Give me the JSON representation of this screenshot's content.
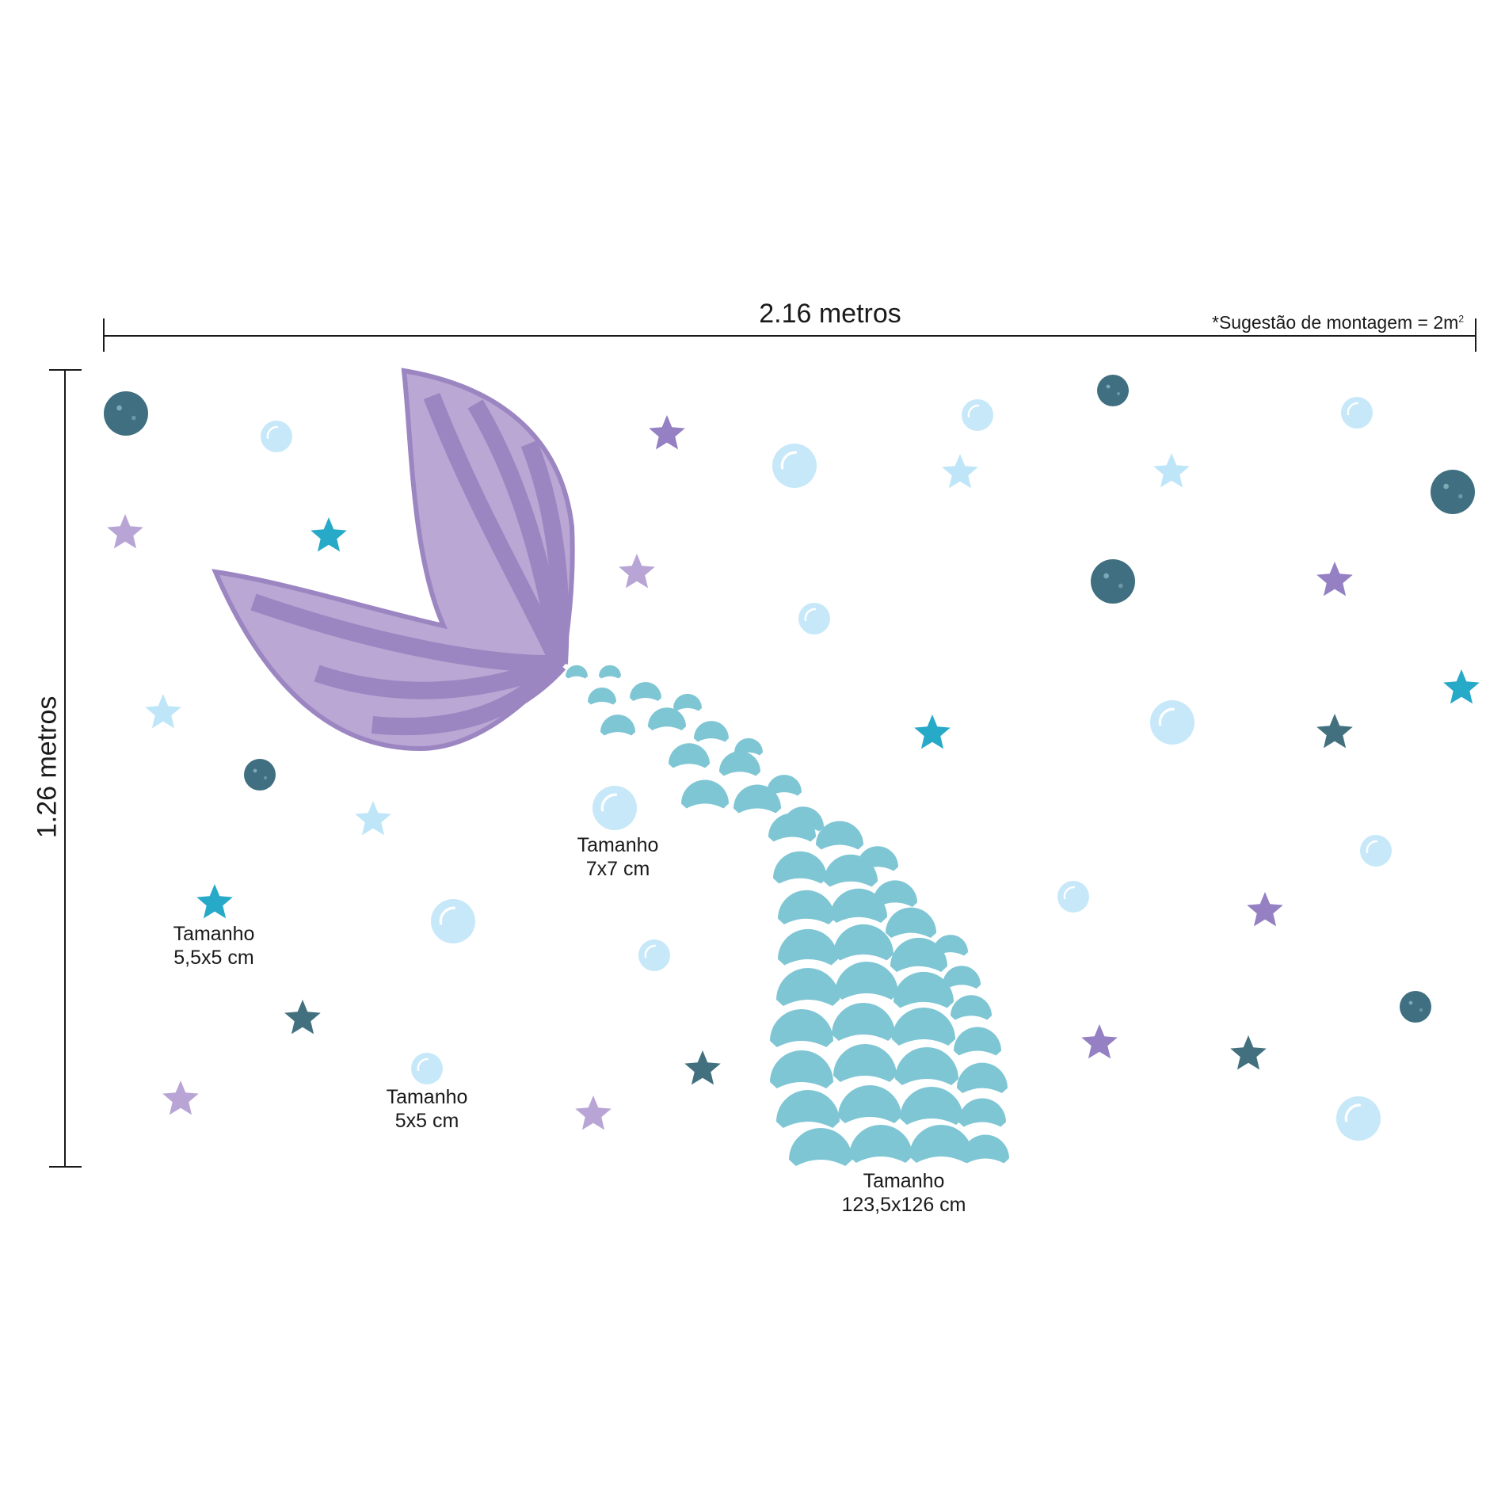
{
  "dimensions": {
    "width_label": "2.16 metros",
    "height_label": "1.26 metros",
    "note_text": "*Sugestão de montagem = 2m",
    "note_superscript": "2"
  },
  "size_labels": [
    {
      "title": "Tamanho",
      "size": "7x7 cm"
    },
    {
      "title": "Tamanho",
      "size": "5,5x5 cm"
    },
    {
      "title": "Tamanho",
      "size": "5x5 cm"
    },
    {
      "title": "Tamanho",
      "size": "123,5x126 cm"
    }
  ],
  "colors": {
    "tail_light": "#bba7d4",
    "tail_dark": "#9b86c2",
    "scales": "#7fc6d4",
    "bubble": "#c6e8f9",
    "bubble_highlight": "#ffffff",
    "glitter_dot": "#3f6f80",
    "star_lavender": "#b9a5d5",
    "star_purple": "#9480c2",
    "star_teal": "#27a9c8",
    "star_lightblue": "#bfe6f8",
    "star_glitter": "#43707f",
    "line": "#1a1a1a"
  },
  "icons": [
    "mermaid-tail-fin",
    "fish-scale",
    "bubble",
    "glitter-dot",
    "star"
  ]
}
